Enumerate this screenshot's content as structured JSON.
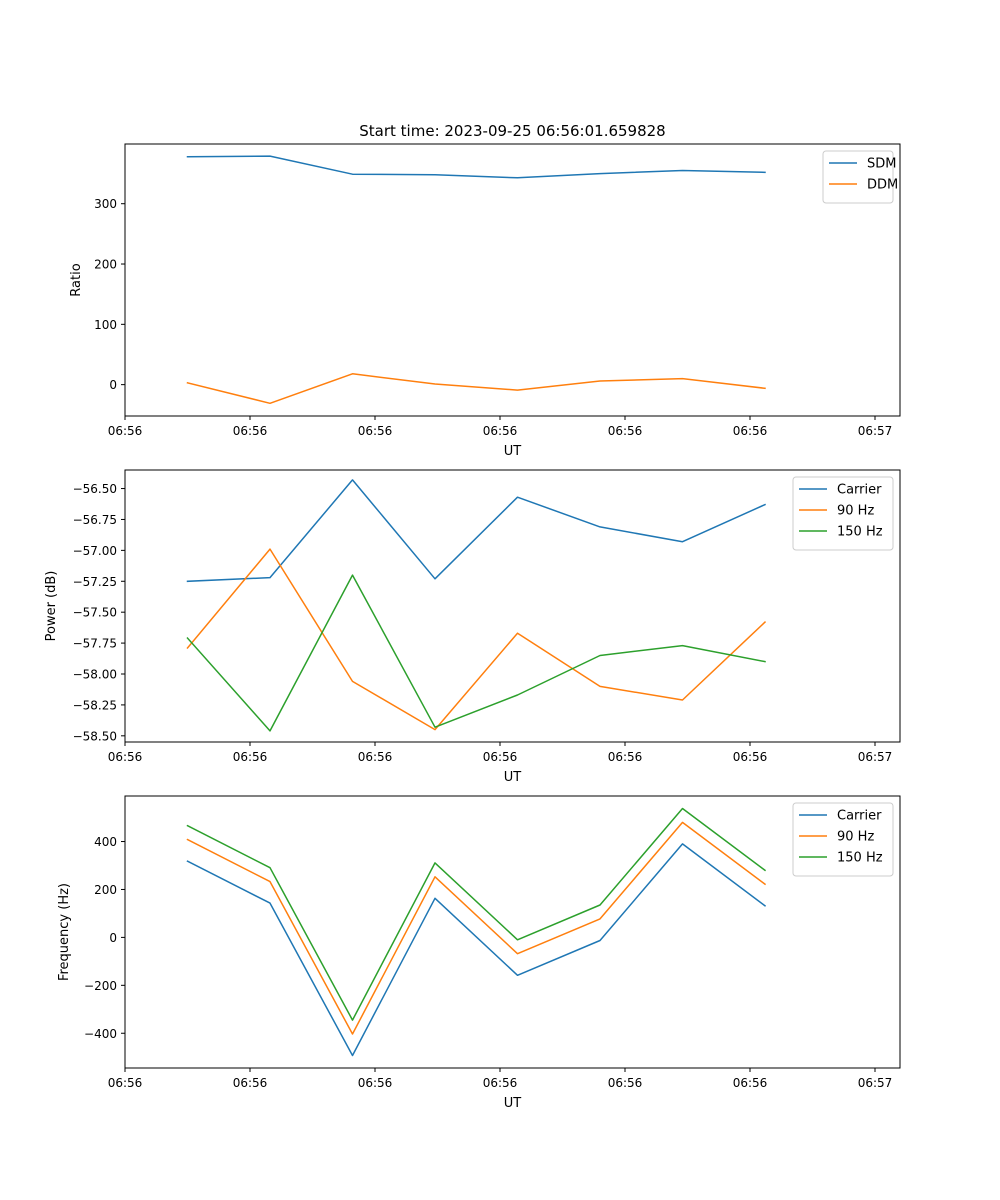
{
  "figure": {
    "title": "Start time: 2023-09-25 06:56:01.659828"
  },
  "palette": {
    "blue": "#1f77b4",
    "orange": "#ff7f0e",
    "green": "#2ca02c",
    "legend_border": "#cccccc"
  },
  "chart_data": [
    {
      "type": "line",
      "id": "ratio",
      "title": "Start time: 2023-09-25 06:56:01.659828",
      "xlabel": "UT",
      "ylabel": "Ratio",
      "x": [
        0.5,
        1.16,
        1.82,
        2.48,
        3.14,
        3.8,
        4.46,
        5.12
      ],
      "xlim": [
        0,
        6.2
      ],
      "xticks": [
        0,
        1,
        2,
        3,
        4,
        5,
        6
      ],
      "xtick_labels": [
        "06:56",
        "06:56",
        "06:56",
        "06:56",
        "06:56",
        "06:56",
        "06:57"
      ],
      "ylim": [
        -52,
        399
      ],
      "yticks": [
        0,
        100,
        200,
        300
      ],
      "ytick_labels": [
        "0",
        "100",
        "200",
        "300"
      ],
      "legend_position": "top-right",
      "series": [
        {
          "name": "SDM",
          "color": "#1f77b4",
          "values": [
            378,
            379,
            349,
            348,
            343,
            350,
            355,
            352
          ]
        },
        {
          "name": "DDM",
          "color": "#ff7f0e",
          "values": [
            3,
            -31,
            18,
            1,
            -9,
            6,
            10,
            -6
          ]
        }
      ]
    },
    {
      "type": "line",
      "id": "power",
      "title": "",
      "xlabel": "UT",
      "ylabel": "Power (dB)",
      "x": [
        0.5,
        1.16,
        1.82,
        2.48,
        3.14,
        3.8,
        4.46,
        5.12
      ],
      "xlim": [
        0,
        6.2
      ],
      "xticks": [
        0,
        1,
        2,
        3,
        4,
        5,
        6
      ],
      "xtick_labels": [
        "06:56",
        "06:56",
        "06:56",
        "06:56",
        "06:56",
        "06:56",
        "06:57"
      ],
      "ylim": [
        -58.55,
        -56.35
      ],
      "yticks": [
        -58.5,
        -58.25,
        -58.0,
        -57.75,
        -57.5,
        -57.25,
        -57.0,
        -56.75,
        -56.5
      ],
      "ytick_labels": [
        "−58.50",
        "−58.25",
        "−58.00",
        "−57.75",
        "−57.50",
        "−57.25",
        "−57.00",
        "−56.75",
        "−56.50"
      ],
      "legend_position": "top-right",
      "series": [
        {
          "name": "Carrier",
          "color": "#1f77b4",
          "values": [
            -57.25,
            -57.22,
            -56.43,
            -57.23,
            -56.57,
            -56.81,
            -56.93,
            -56.63
          ]
        },
        {
          "name": "90 Hz",
          "color": "#ff7f0e",
          "values": [
            -57.79,
            -56.99,
            -58.06,
            -58.45,
            -57.67,
            -58.1,
            -58.21,
            -57.58
          ]
        },
        {
          "name": "150 Hz",
          "color": "#2ca02c",
          "values": [
            -57.71,
            -58.46,
            -57.2,
            -58.43,
            -58.17,
            -57.85,
            -57.77,
            -57.9
          ]
        }
      ]
    },
    {
      "type": "line",
      "id": "frequency",
      "title": "",
      "xlabel": "UT",
      "ylabel": "Frequency (Hz)",
      "x": [
        0.5,
        1.16,
        1.82,
        2.48,
        3.14,
        3.8,
        4.46,
        5.12
      ],
      "xlim": [
        0,
        6.2
      ],
      "xticks": [
        0,
        1,
        2,
        3,
        4,
        5,
        6
      ],
      "xtick_labels": [
        "06:56",
        "06:56",
        "06:56",
        "06:56",
        "06:56",
        "06:56",
        "06:57"
      ],
      "ylim": [
        -545,
        590
      ],
      "yticks": [
        -400,
        -200,
        0,
        200,
        400
      ],
      "ytick_labels": [
        "−400",
        "−200",
        "0",
        "200",
        "400"
      ],
      "legend_position": "top-right",
      "series": [
        {
          "name": "Carrier",
          "color": "#1f77b4",
          "values": [
            318,
            143,
            -493,
            163,
            -158,
            -13,
            390,
            132
          ]
        },
        {
          "name": "90 Hz",
          "color": "#ff7f0e",
          "values": [
            408,
            233,
            -403,
            253,
            -68,
            77,
            480,
            222
          ]
        },
        {
          "name": "150 Hz",
          "color": "#2ca02c",
          "values": [
            466,
            291,
            -345,
            311,
            -10,
            135,
            538,
            280
          ]
        }
      ]
    }
  ]
}
